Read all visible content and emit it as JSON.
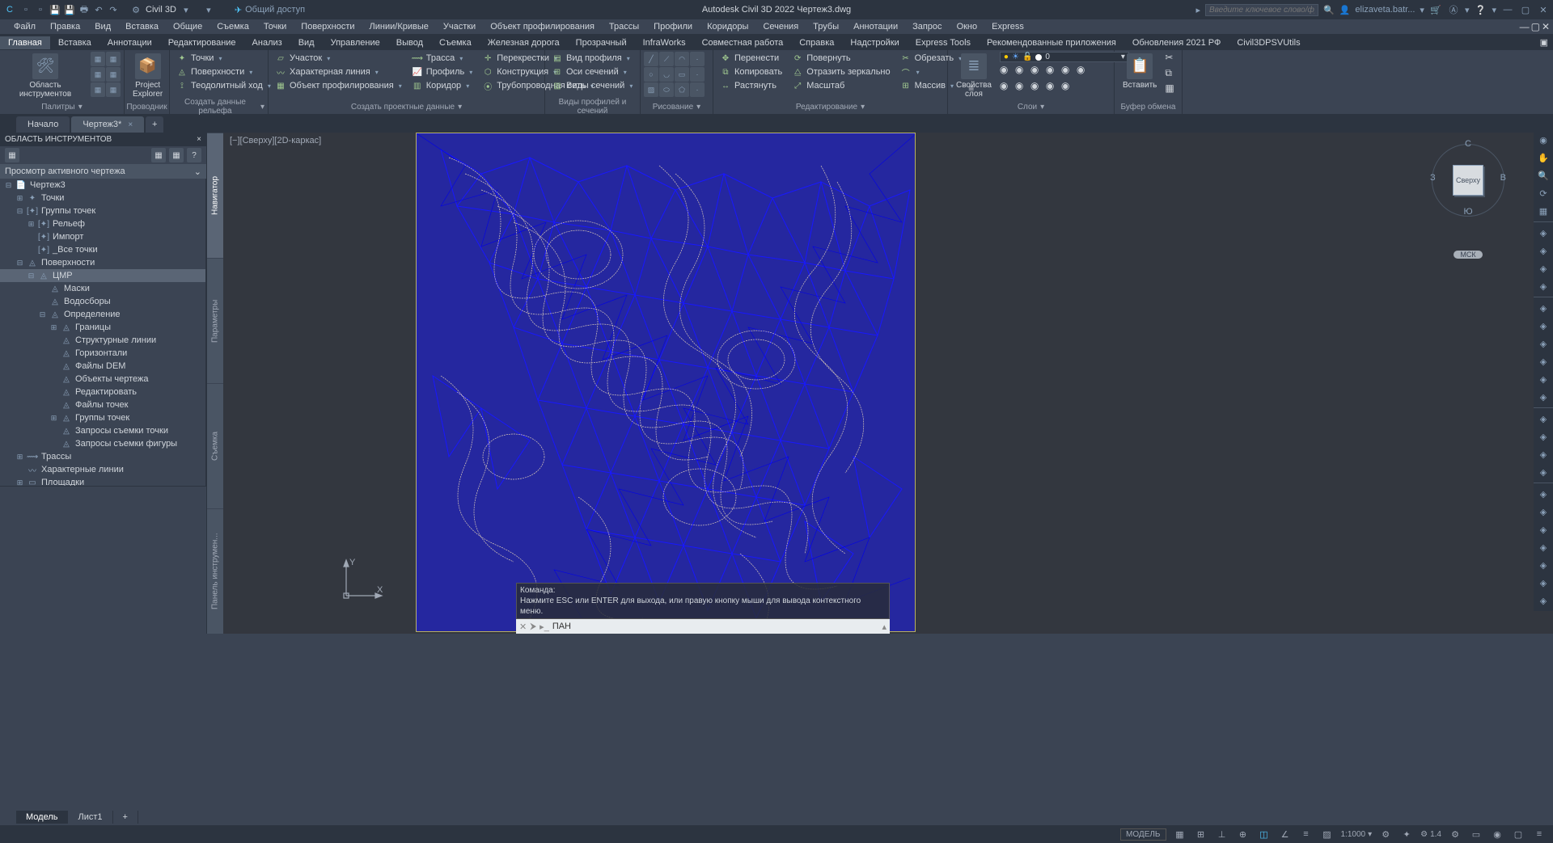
{
  "app": {
    "name": "Autodesk Civil 3D 2022",
    "file": "Чертеж3.dwg",
    "full_title": "Autodesk Civil 3D 2022    Чертеж3.dwg"
  },
  "workspace": "Civil 3D",
  "share": "Общий доступ",
  "search_placeholder": "Введите ключевое слово/фразу",
  "user": "elizaveta.batr...",
  "menus": [
    "Файл",
    "Правка",
    "Вид",
    "Вставка",
    "Общие",
    "Съемка",
    "Точки",
    "Поверхности",
    "Линии/Кривые",
    "Участки",
    "Объект профилирования",
    "Трассы",
    "Профили",
    "Коридоры",
    "Сечения",
    "Трубы",
    "Аннотации",
    "Запрос",
    "Окно",
    "Express"
  ],
  "ribbon_tabs": [
    "Главная",
    "Вставка",
    "Аннотации",
    "Редактирование",
    "Анализ",
    "Вид",
    "Управление",
    "Вывод",
    "Съемка",
    "Железная дорога",
    "Прозрачный",
    "InfraWorks",
    "Совместная работа",
    "Справка",
    "Надстройки",
    "Express Tools",
    "Рекомендованные приложения",
    "Обновления 2021 РФ",
    "Civil3DPSVUtils"
  ],
  "ribbon": {
    "p1": {
      "big": "Область инструментов",
      "title": "Палитры"
    },
    "p2": {
      "big": "Project\nExplorer",
      "title": "Проводник"
    },
    "p3": {
      "items": [
        "Точки",
        "Поверхности",
        "Теодолитный ход"
      ],
      "title": "Создать данные рельефа"
    },
    "p4": {
      "items": [
        "Участок",
        "Характерная линия",
        "Объект профилирования"
      ],
      "title": "Создать проектные данные"
    },
    "p5": {
      "items": [
        "Трасса",
        "Профиль",
        "Коридор"
      ]
    },
    "p6": {
      "items": [
        "Перекрестки",
        "Конструкция",
        "Трубопроводная сеть"
      ]
    },
    "p7": {
      "items": [
        "Вид профиля",
        "Оси сечений",
        "Виды сечений"
      ],
      "title": "Виды профилей и сечений"
    },
    "p8": {
      "title": "Рисование"
    },
    "p9": {
      "items": [
        "Перенести",
        "Копировать",
        "Растянуть"
      ],
      "items2": [
        "Повернуть",
        "Отразить зеркально",
        "Масштаб"
      ],
      "title": "Редактирование"
    },
    "p10": {
      "items": [
        "Обрезать",
        "",
        "Массив"
      ]
    },
    "p11": {
      "big": "Свойства\nслоя",
      "layer_value": "0",
      "title": "Слои"
    },
    "p12": {
      "big": "Вставить",
      "title": "Буфер обмена"
    }
  },
  "file_tabs": [
    "Начало",
    "Чертеж3*"
  ],
  "toolspace": {
    "title": "ОБЛАСТЬ ИНСТРУМЕНТОВ",
    "filter": "Просмотр активного чертежа"
  },
  "side_tabs": [
    "Навигатор",
    "Параметры",
    "Съемка",
    "Панель инструмен..."
  ],
  "tree": [
    {
      "d": 0,
      "e": "−",
      "i": "📄",
      "t": "Чертеж3"
    },
    {
      "d": 1,
      "e": "+",
      "i": "✦",
      "t": "Точки"
    },
    {
      "d": 1,
      "e": "−",
      "i": "[✦]",
      "t": "Группы точек"
    },
    {
      "d": 2,
      "e": "+",
      "i": "[✦]",
      "t": "Рельеф"
    },
    {
      "d": 2,
      "e": "",
      "i": "[✦]",
      "t": "Импорт"
    },
    {
      "d": 2,
      "e": "",
      "i": "[✦]",
      "t": "_Все точки"
    },
    {
      "d": 1,
      "e": "−",
      "i": "◬",
      "t": "Поверхности"
    },
    {
      "d": 2,
      "e": "−",
      "i": "◬",
      "t": "ЦМР",
      "sel": true
    },
    {
      "d": 3,
      "e": "",
      "i": "◬",
      "t": "Маски"
    },
    {
      "d": 3,
      "e": "",
      "i": "◬",
      "t": "Водосборы"
    },
    {
      "d": 3,
      "e": "−",
      "i": "◬",
      "t": "Определение"
    },
    {
      "d": 4,
      "e": "+",
      "i": "◬",
      "t": "Границы"
    },
    {
      "d": 4,
      "e": "",
      "i": "◬",
      "t": "Структурные линии"
    },
    {
      "d": 4,
      "e": "",
      "i": "◬",
      "t": "Горизонтали"
    },
    {
      "d": 4,
      "e": "",
      "i": "◬",
      "t": "Файлы DEM"
    },
    {
      "d": 4,
      "e": "",
      "i": "◬",
      "t": "Объекты чертежа"
    },
    {
      "d": 4,
      "e": "",
      "i": "◬",
      "t": "Редактировать"
    },
    {
      "d": 4,
      "e": "",
      "i": "◬",
      "t": "Файлы точек"
    },
    {
      "d": 4,
      "e": "+",
      "i": "◬",
      "t": "Группы точек"
    },
    {
      "d": 4,
      "e": "",
      "i": "◬",
      "t": "Запросы съемки точки"
    },
    {
      "d": 4,
      "e": "",
      "i": "◬",
      "t": "Запросы съемки фигуры"
    },
    {
      "d": 1,
      "e": "+",
      "i": "⟿",
      "t": "Трассы"
    },
    {
      "d": 1,
      "e": "",
      "i": "〰",
      "t": "Характерные линии"
    },
    {
      "d": 1,
      "e": "+",
      "i": "▭",
      "t": "Площадки"
    }
  ],
  "view_label": "[−][Сверху][2D-каркас]",
  "viewcube": {
    "top": "С",
    "left": "З",
    "right": "В",
    "bottom": "Ю",
    "face": "Сверху",
    "cs": "МСК"
  },
  "ucs": {
    "y": "Y",
    "x": "X"
  },
  "cmd": {
    "hist1": "Команда:",
    "hist2": "Нажмите ESC или ENTER для выхода, или правую кнопку мыши для вывода контекстного меню.",
    "value": "ПАН"
  },
  "bottom_tabs": [
    "Модель",
    "Лист1"
  ],
  "status": {
    "model": "МОДЕЛЬ",
    "scale": "1:1000",
    "zoom": "1.4"
  },
  "colors": {
    "canvas": "#33373f",
    "surface": "#1818ff",
    "contour": "#d8c8b8",
    "border": "#b8b060",
    "dark": "#2c3440",
    "mid": "#3b4453",
    "light": "#4a5564"
  }
}
